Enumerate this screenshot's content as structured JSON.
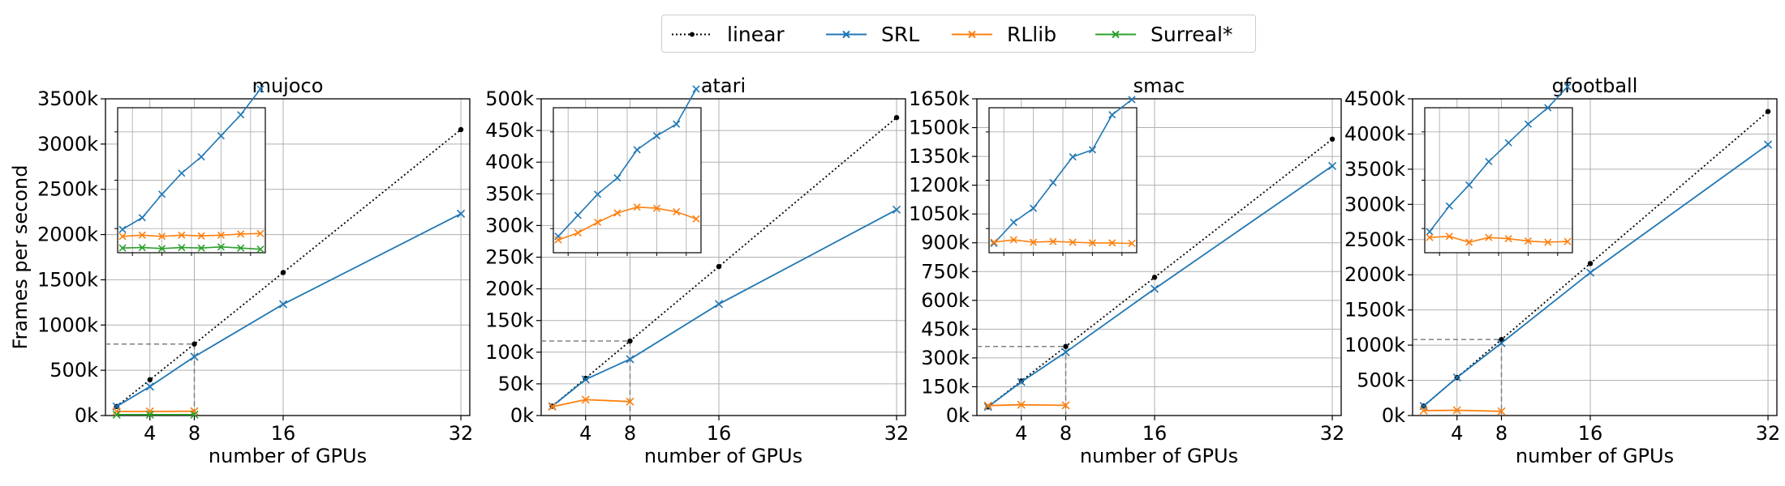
{
  "colors": {
    "linear": "#000000",
    "SRL": "#1f77b4",
    "RLlib": "#ff7f0e",
    "Surreal*": "#2ca02c",
    "grid": "#b0b0b0",
    "guide": "#808080"
  },
  "legend": [
    "linear",
    "SRL",
    "RLlib",
    "Surreal*"
  ],
  "chart_data": [
    {
      "type": "line",
      "title": "mujoco",
      "xlabel": "number of GPUs",
      "ylabel": "Frames per second",
      "xticks": [
        "4",
        "8",
        "16",
        "32"
      ],
      "xlim": [
        0,
        32.8
      ],
      "ylim": [
        0,
        3500000
      ],
      "yticks": [
        "0k",
        "500k",
        "1000k",
        "1500k",
        "2000k",
        "2500k",
        "3000k",
        "3500k"
      ],
      "ytick_values": [
        0,
        500000,
        1000000,
        1500000,
        2000000,
        2500000,
        3000000,
        3500000
      ],
      "grid": true,
      "series": [
        {
          "name": "linear",
          "style": "dotted",
          "marker": "dot",
          "x": [
            1,
            4,
            8,
            16,
            32
          ],
          "y": [
            100000,
            395000,
            790000,
            1580000,
            3160000
          ]
        },
        {
          "name": "SRL",
          "style": "solid",
          "marker": "x",
          "x": [
            1,
            4,
            8,
            16,
            32
          ],
          "y": [
            100000,
            320000,
            650000,
            1230000,
            2230000
          ]
        },
        {
          "name": "RLlib",
          "style": "solid",
          "marker": "x",
          "x": [
            1,
            4,
            8
          ],
          "y": [
            45000,
            45000,
            47000
          ]
        },
        {
          "name": "Surreal*",
          "style": "solid",
          "marker": "x",
          "x": [
            1,
            4,
            8
          ],
          "y": [
            10000,
            10000,
            10000
          ]
        }
      ],
      "zoom_box": {
        "x": 8,
        "y": 790000
      },
      "inset": {
        "x": [
          1,
          2,
          3,
          4,
          5,
          6,
          7,
          8
        ],
        "ylim": [
          0,
          6.2
        ],
        "series": [
          {
            "name": "SRL",
            "y": [
              1.0,
              1.5,
              2.5,
              3.4,
              4.1,
              5.0,
              5.9,
              7.0
            ]
          },
          {
            "name": "RLlib",
            "y": [
              0.7,
              0.75,
              0.7,
              0.75,
              0.72,
              0.75,
              0.8,
              0.82
            ]
          },
          {
            "name": "Surreal*",
            "y": [
              0.2,
              0.22,
              0.18,
              0.22,
              0.2,
              0.25,
              0.2,
              0.15
            ]
          }
        ]
      }
    },
    {
      "type": "line",
      "title": "atari",
      "xlabel": "number of GPUs",
      "xticks": [
        "4",
        "8",
        "16",
        "32"
      ],
      "xlim": [
        0,
        32.8
      ],
      "ylim": [
        0,
        500000
      ],
      "yticks": [
        "0k",
        "50k",
        "100k",
        "150k",
        "200k",
        "250k",
        "300k",
        "350k",
        "400k",
        "450k",
        "500k"
      ],
      "ytick_values": [
        0,
        50000,
        100000,
        150000,
        200000,
        250000,
        300000,
        350000,
        400000,
        450000,
        500000
      ],
      "grid": true,
      "series": [
        {
          "name": "linear",
          "style": "dotted",
          "marker": "dot",
          "x": [
            1,
            4,
            8,
            16,
            32
          ],
          "y": [
            14700,
            58800,
            117600,
            235200,
            470400
          ]
        },
        {
          "name": "SRL",
          "style": "solid",
          "marker": "x",
          "x": [
            1,
            4,
            8,
            16,
            32
          ],
          "y": [
            14700,
            57000,
            89000,
            176000,
            325000
          ]
        },
        {
          "name": "RLlib",
          "style": "solid",
          "marker": "x",
          "x": [
            1,
            4,
            8
          ],
          "y": [
            14000,
            25000,
            22000
          ]
        }
      ],
      "zoom_box": {
        "x": 8,
        "y": 117600
      },
      "inset": {
        "x": [
          1,
          2,
          3,
          4,
          5,
          6,
          7,
          8
        ],
        "ylim": [
          0,
          6.2
        ],
        "series": [
          {
            "name": "SRL",
            "y": [
              0.7,
              1.6,
              2.5,
              3.2,
              4.4,
              5.0,
              5.5,
              7.0
            ]
          },
          {
            "name": "RLlib",
            "y": [
              0.55,
              0.85,
              1.3,
              1.7,
              1.95,
              1.9,
              1.75,
              1.45
            ]
          }
        ]
      }
    },
    {
      "type": "line",
      "title": "smac",
      "xlabel": "number of GPUs",
      "xticks": [
        "4",
        "8",
        "16",
        "32"
      ],
      "xlim": [
        0,
        32.8
      ],
      "ylim": [
        0,
        1650000
      ],
      "yticks": [
        "0k",
        "150k",
        "300k",
        "450k",
        "600k",
        "750k",
        "900k",
        "1050k",
        "1200k",
        "1350k",
        "1500k",
        "1650k"
      ],
      "ytick_values": [
        0,
        150000,
        300000,
        450000,
        600000,
        750000,
        900000,
        1050000,
        1200000,
        1350000,
        1500000,
        1650000
      ],
      "grid": true,
      "series": [
        {
          "name": "linear",
          "style": "dotted",
          "marker": "dot",
          "x": [
            1,
            4,
            8,
            16,
            32
          ],
          "y": [
            45000,
            180000,
            360000,
            720000,
            1440000
          ]
        },
        {
          "name": "SRL",
          "style": "solid",
          "marker": "x",
          "x": [
            1,
            4,
            8,
            16,
            32
          ],
          "y": [
            45000,
            175000,
            330000,
            660000,
            1300000
          ]
        },
        {
          "name": "RLlib",
          "style": "solid",
          "marker": "x",
          "x": [
            1,
            4,
            8
          ],
          "y": [
            52000,
            56000,
            53000
          ]
        }
      ],
      "zoom_box": {
        "x": 8,
        "y": 360000
      },
      "inset": {
        "x": [
          1,
          2,
          3,
          4,
          5,
          6,
          7,
          8
        ],
        "ylim": [
          0,
          6.2
        ],
        "series": [
          {
            "name": "SRL",
            "y": [
              0.4,
              1.3,
              1.9,
              3.0,
              4.1,
              4.4,
              5.9,
              6.55
            ]
          },
          {
            "name": "RLlib",
            "y": [
              0.45,
              0.55,
              0.45,
              0.48,
              0.45,
              0.42,
              0.42,
              0.4
            ]
          }
        ]
      }
    },
    {
      "type": "line",
      "title": "gfootball",
      "xlabel": "number of GPUs",
      "xticks": [
        "4",
        "8",
        "16",
        "32"
      ],
      "xlim": [
        0,
        32.8
      ],
      "ylim": [
        0,
        4500000
      ],
      "yticks": [
        "0k",
        "500k",
        "1000k",
        "1500k",
        "2000k",
        "2500k",
        "3000k",
        "3500k",
        "4000k",
        "4500k"
      ],
      "ytick_values": [
        0,
        500000,
        1000000,
        1500000,
        2000000,
        2500000,
        3000000,
        3500000,
        4000000,
        4500000
      ],
      "grid": true,
      "series": [
        {
          "name": "linear",
          "style": "dotted",
          "marker": "dot",
          "x": [
            1,
            4,
            8,
            16,
            32
          ],
          "y": [
            135000,
            540000,
            1080000,
            2160000,
            4320000
          ]
        },
        {
          "name": "SRL",
          "style": "solid",
          "marker": "x",
          "x": [
            1,
            4,
            8,
            16,
            32
          ],
          "y": [
            135000,
            540000,
            1030000,
            2030000,
            3850000
          ]
        },
        {
          "name": "RLlib",
          "style": "solid",
          "marker": "x",
          "x": [
            1,
            4,
            8
          ],
          "y": [
            70000,
            75000,
            60000
          ]
        }
      ],
      "zoom_box": {
        "x": 8,
        "y": 1080000
      },
      "inset": {
        "x": [
          1,
          2,
          3,
          4,
          5,
          6,
          7,
          8
        ],
        "ylim": [
          0,
          6.2
        ],
        "series": [
          {
            "name": "SRL",
            "y": [
              0.9,
              2.0,
              2.9,
              3.9,
              4.7,
              5.5,
              6.2,
              7.1
            ]
          },
          {
            "name": "RLlib",
            "y": [
              0.65,
              0.7,
              0.45,
              0.65,
              0.6,
              0.5,
              0.45,
              0.48
            ]
          }
        ]
      }
    }
  ]
}
